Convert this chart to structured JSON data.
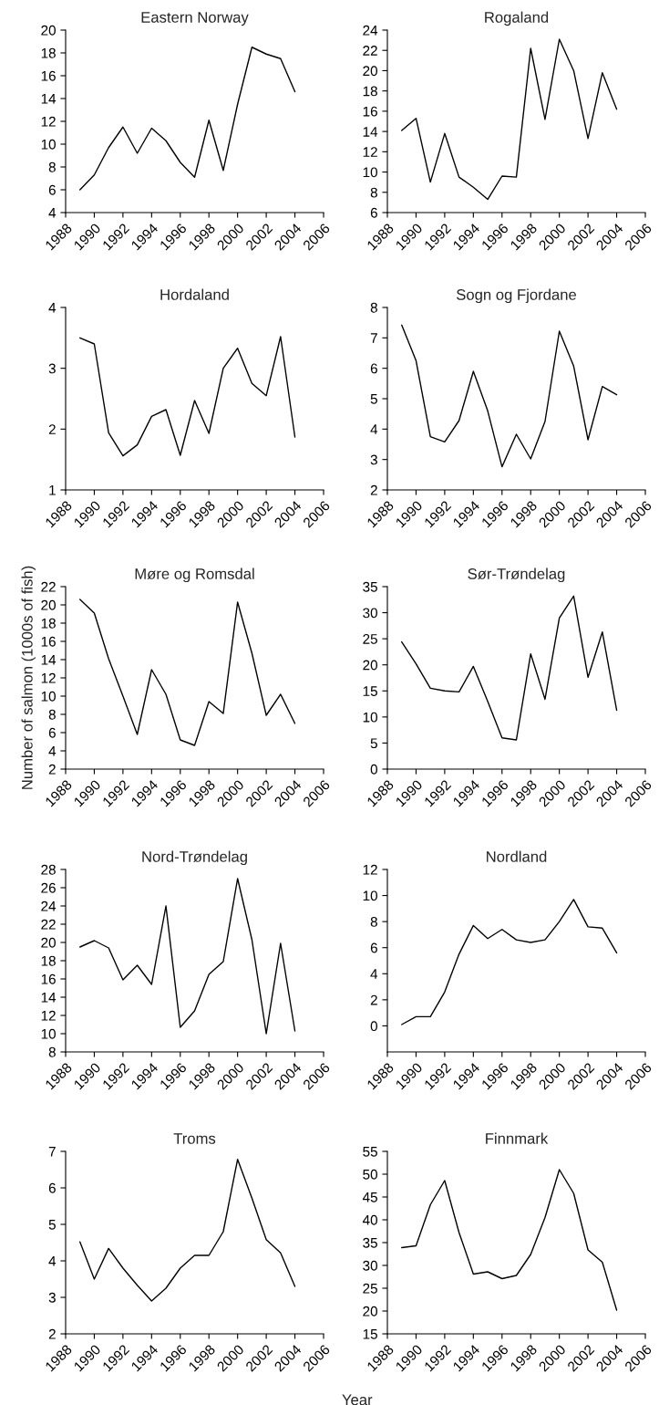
{
  "chart_data": [
    {
      "type": "line",
      "title": "Eastern Norway",
      "x": [
        1989,
        1990,
        1991,
        1992,
        1993,
        1994,
        1995,
        1996,
        1997,
        1998,
        1999,
        2000,
        2001,
        2002,
        2003,
        2004
      ],
      "series": [
        {
          "color": "#000000",
          "values": [
            6.0,
            7.3,
            9.7,
            11.5,
            9.2,
            11.4,
            10.3,
            8.4,
            7.1,
            12.1,
            7.7,
            13.5,
            18.5,
            17.9,
            17.5,
            14.6
          ]
        }
      ],
      "xlim": [
        1988,
        2006
      ],
      "xticks": [
        1988,
        1990,
        1992,
        1994,
        1996,
        1998,
        2000,
        2002,
        2004,
        2006
      ],
      "ylim": [
        4,
        20
      ],
      "yticks": [
        4,
        6,
        8,
        10,
        12,
        14,
        16,
        18,
        20
      ]
    },
    {
      "type": "line",
      "title": "Rogaland",
      "x": [
        1989,
        1990,
        1991,
        1992,
        1993,
        1994,
        1995,
        1996,
        1997,
        1998,
        1999,
        2000,
        2001,
        2002,
        2003,
        2004
      ],
      "series": [
        {
          "color": "#000000",
          "values": [
            14.1,
            15.3,
            9.0,
            13.8,
            9.5,
            8.5,
            7.3,
            9.6,
            9.5,
            22.2,
            15.2,
            23.1,
            20.0,
            13.3,
            19.8,
            16.2
          ]
        }
      ],
      "xlim": [
        1988,
        2006
      ],
      "xticks": [
        1988,
        1990,
        1992,
        1994,
        1996,
        1998,
        2000,
        2002,
        2004,
        2006
      ],
      "ylim": [
        6,
        24
      ],
      "yticks": [
        6,
        8,
        10,
        12,
        14,
        16,
        18,
        20,
        22,
        24
      ]
    },
    {
      "type": "line",
      "title": "Hordaland",
      "x": [
        1989,
        1990,
        1991,
        1992,
        1993,
        1994,
        1995,
        1996,
        1997,
        1998,
        1999,
        2000,
        2001,
        2002,
        2003,
        2004
      ],
      "series": [
        {
          "color": "#000000",
          "values": [
            3.5,
            3.4,
            1.94,
            1.56,
            1.74,
            2.21,
            2.32,
            1.57,
            2.47,
            1.93,
            3.0,
            3.33,
            2.75,
            2.55,
            3.52,
            1.87
          ]
        }
      ],
      "xlim": [
        1988,
        2006
      ],
      "xticks": [
        1988,
        1990,
        1992,
        1994,
        1996,
        1998,
        2000,
        2002,
        2004,
        2006
      ],
      "ylim": [
        1,
        4
      ],
      "yticks": [
        1,
        2,
        3,
        4
      ]
    },
    {
      "type": "line",
      "title": "Sogn og Fjordane",
      "x": [
        1989,
        1990,
        1991,
        1992,
        1993,
        1994,
        1995,
        1996,
        1997,
        1998,
        1999,
        2000,
        2001,
        2002,
        2003,
        2004
      ],
      "series": [
        {
          "color": "#000000",
          "values": [
            7.42,
            6.25,
            3.75,
            3.58,
            4.28,
            5.9,
            4.6,
            2.76,
            3.83,
            3.02,
            4.25,
            7.22,
            6.07,
            3.65,
            5.4,
            5.13
          ]
        }
      ],
      "xlim": [
        1988,
        2006
      ],
      "xticks": [
        1988,
        1990,
        1992,
        1994,
        1996,
        1998,
        2000,
        2002,
        2004,
        2006
      ],
      "ylim": [
        2,
        8
      ],
      "yticks": [
        2,
        3,
        4,
        5,
        6,
        7,
        8
      ]
    },
    {
      "type": "line",
      "title": "Møre og Romsdal",
      "ylabel": "Number of salmon (1000s of fish)",
      "x": [
        1989,
        1990,
        1991,
        1992,
        1993,
        1994,
        1995,
        1996,
        1997,
        1998,
        1999,
        2000,
        2001,
        2002,
        2003,
        2004
      ],
      "series": [
        {
          "color": "#000000",
          "values": [
            20.6,
            19.1,
            14.1,
            10.0,
            5.8,
            12.9,
            10.2,
            5.2,
            4.6,
            9.4,
            8.1,
            20.3,
            14.7,
            7.9,
            10.2,
            7.0
          ]
        }
      ],
      "xlim": [
        1988,
        2006
      ],
      "xticks": [
        1988,
        1990,
        1992,
        1994,
        1996,
        1998,
        2000,
        2002,
        2004,
        2006
      ],
      "ylim": [
        2,
        22
      ],
      "yticks": [
        2,
        4,
        6,
        8,
        10,
        12,
        14,
        16,
        18,
        20,
        22
      ]
    },
    {
      "type": "line",
      "title": "Sør-Trøndelag",
      "x": [
        1989,
        1990,
        1991,
        1992,
        1993,
        1994,
        1995,
        1996,
        1997,
        1998,
        1999,
        2000,
        2001,
        2002,
        2003,
        2004
      ],
      "series": [
        {
          "color": "#000000",
          "values": [
            24.4,
            20.2,
            15.5,
            15.0,
            14.8,
            19.7,
            13.0,
            6.0,
            5.6,
            22.1,
            13.4,
            29.0,
            33.2,
            17.6,
            26.3,
            11.3
          ]
        }
      ],
      "xlim": [
        1988,
        2006
      ],
      "xticks": [
        1988,
        1990,
        1992,
        1994,
        1996,
        1998,
        2000,
        2002,
        2004,
        2006
      ],
      "ylim": [
        0,
        35
      ],
      "yticks": [
        0,
        5,
        10,
        15,
        20,
        25,
        30,
        35
      ]
    },
    {
      "type": "line",
      "title": "Nord-Trøndelag",
      "x": [
        1989,
        1990,
        1991,
        1992,
        1993,
        1994,
        1995,
        1996,
        1997,
        1998,
        1999,
        2000,
        2001,
        2002,
        2003,
        2004
      ],
      "series": [
        {
          "color": "#000000",
          "values": [
            19.5,
            20.2,
            19.4,
            15.9,
            17.5,
            15.4,
            24.0,
            10.7,
            12.5,
            16.5,
            17.9,
            27.0,
            20.3,
            10.0,
            19.9,
            10.3
          ]
        }
      ],
      "xlim": [
        1988,
        2006
      ],
      "xticks": [
        1988,
        1990,
        1992,
        1994,
        1996,
        1998,
        2000,
        2002,
        2004,
        2006
      ],
      "ylim": [
        8,
        28
      ],
      "yticks": [
        8,
        10,
        12,
        14,
        16,
        18,
        20,
        22,
        24,
        26,
        28
      ]
    },
    {
      "type": "line",
      "title": "Nordland",
      "x": [
        1989,
        1990,
        1991,
        1992,
        1993,
        1994,
        1995,
        1996,
        1997,
        1998,
        1999,
        2000,
        2001,
        2002,
        2003,
        2004
      ],
      "series": [
        {
          "color": "#000000",
          "values": [
            0.1,
            0.7,
            0.7,
            2.6,
            5.5,
            7.7,
            6.7,
            7.4,
            6.6,
            6.4,
            6.6,
            8.0,
            9.7,
            7.6,
            7.5,
            5.6
          ]
        }
      ],
      "xlim": [
        1988,
        2006
      ],
      "xticks": [
        1988,
        1990,
        1992,
        1994,
        1996,
        1998,
        2000,
        2002,
        2004,
        2006
      ],
      "ylim": [
        -2,
        12
      ],
      "yticks": [
        0,
        2,
        4,
        6,
        8,
        10,
        12
      ]
    },
    {
      "type": "line",
      "title": "Troms",
      "xlabel": "Year",
      "x": [
        1989,
        1990,
        1991,
        1992,
        1993,
        1994,
        1995,
        1996,
        1997,
        1998,
        1999,
        2000,
        2001,
        2002,
        2003,
        2004
      ],
      "series": [
        {
          "color": "#000000",
          "values": [
            4.52,
            3.5,
            4.34,
            3.8,
            3.33,
            2.9,
            3.25,
            3.8,
            4.15,
            4.15,
            4.8,
            6.78,
            5.72,
            4.58,
            4.22,
            3.3
          ]
        }
      ],
      "xlim": [
        1988,
        2006
      ],
      "xticks": [
        1988,
        1990,
        1992,
        1994,
        1996,
        1998,
        2000,
        2002,
        2004,
        2006
      ],
      "ylim": [
        2,
        7
      ],
      "yticks": [
        2,
        3,
        4,
        5,
        6,
        7
      ]
    },
    {
      "type": "line",
      "title": "Finnmark",
      "x": [
        1989,
        1990,
        1991,
        1992,
        1993,
        1994,
        1995,
        1996,
        1997,
        1998,
        1999,
        2000,
        2001,
        2002,
        2003,
        2004
      ],
      "series": [
        {
          "color": "#000000",
          "values": [
            33.9,
            34.3,
            43.3,
            48.6,
            37.2,
            28.1,
            28.6,
            27.1,
            27.8,
            32.4,
            40.5,
            51.0,
            45.8,
            33.4,
            30.7,
            20.2
          ]
        }
      ],
      "xlim": [
        1988,
        2006
      ],
      "xticks": [
        1988,
        1990,
        1992,
        1994,
        1996,
        1998,
        2000,
        2002,
        2004,
        2006
      ],
      "ylim": [
        15,
        55
      ],
      "yticks": [
        15,
        20,
        25,
        30,
        35,
        40,
        45,
        50,
        55
      ]
    }
  ]
}
